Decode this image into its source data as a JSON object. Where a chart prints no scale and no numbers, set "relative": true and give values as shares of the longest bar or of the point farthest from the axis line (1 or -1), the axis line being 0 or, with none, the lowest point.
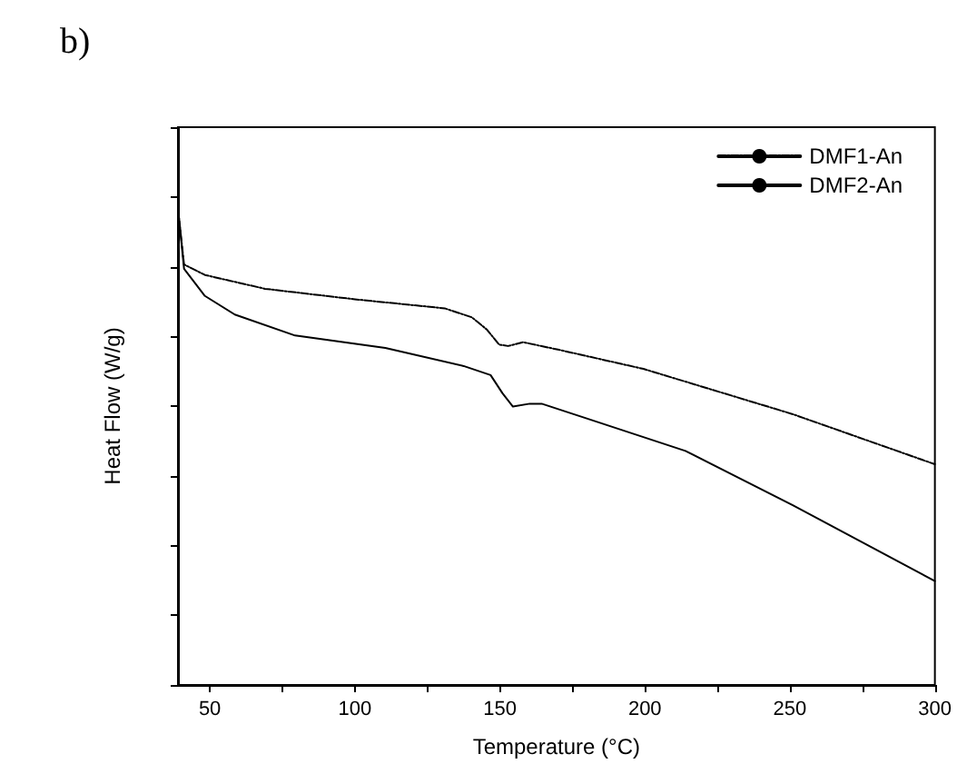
{
  "chart_data": {
    "type": "line",
    "title": "b)",
    "xlabel": "Temperature (°C)",
    "ylabel": "Heat Flow (W/g)",
    "relative": true,
    "xlim": [
      39,
      300
    ],
    "xticks": [
      50,
      {
        "value": 75,
        "label": null
      },
      100,
      {
        "value": 125,
        "label": null
      },
      150,
      {
        "value": 175,
        "label": null
      },
      200,
      {
        "value": 225,
        "label": null
      },
      250,
      {
        "value": 275,
        "label": null
      },
      300
    ],
    "legend": "top right",
    "grid": false,
    "marker": "none",
    "series": [
      {
        "name": "DMF1-An",
        "color": "#000000",
        "line_style": "dotted",
        "x": [
          39,
          41.1,
          48.3,
          69,
          100,
          131,
          140.4,
          145.6,
          149.7,
          152.8,
          158,
          170.4,
          199.5,
          251,
          300
        ],
        "values": [
          1,
          0.882,
          0.86,
          0.831,
          0.809,
          0.79,
          0.771,
          0.745,
          0.714,
          0.711,
          0.719,
          0.703,
          0.663,
          0.568,
          0.463
        ]
      },
      {
        "name": "DMF2-An",
        "color": "#000000",
        "line_style": "solid",
        "x": [
          39,
          41.1,
          48.3,
          58.6,
          79.4,
          110.5,
          137.5,
          146.8,
          150.9,
          154.5,
          160.3,
          164.4,
          179,
          214,
          251,
          300
        ],
        "values": [
          1,
          0.873,
          0.816,
          0.777,
          0.733,
          0.707,
          0.669,
          0.65,
          0.612,
          0.584,
          0.59,
          0.59,
          0.561,
          0.491,
          0.377,
          0.218
        ]
      }
    ]
  }
}
